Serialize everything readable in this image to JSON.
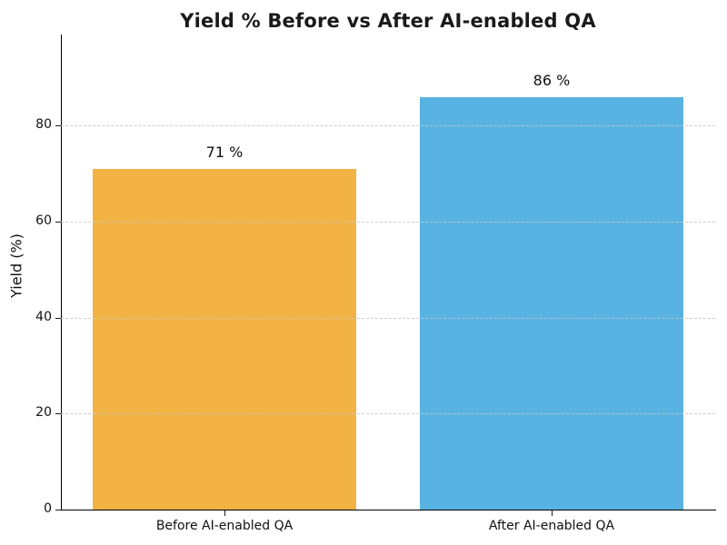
{
  "chart_data": {
    "type": "bar",
    "title": "Yield % Before vs After AI-enabled QA",
    "categories": [
      "Before AI-enabled QA",
      "After AI-enabled QA"
    ],
    "values": [
      71,
      86
    ],
    "bar_labels": [
      "71 %",
      "86 %"
    ],
    "bar_colors": [
      "#F2B344",
      "#59B3E2"
    ],
    "xlabel": "",
    "ylabel": "Yield (%)",
    "yticks": [
      "0",
      "20",
      "40",
      "60",
      "80"
    ],
    "ytick_values": [
      0,
      20,
      40,
      60,
      80
    ],
    "ylim": [
      0,
      99
    ],
    "grid": "horizontal-dashed",
    "grid_color": "#c8c8c8",
    "legend": "none",
    "background": "#ffffff",
    "spine_color": "#000000"
  }
}
